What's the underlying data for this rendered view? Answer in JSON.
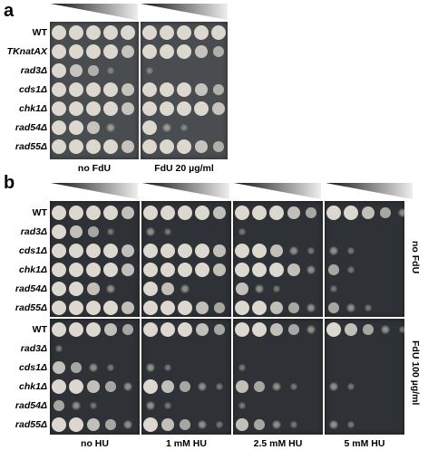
{
  "panel_a": {
    "label": "a",
    "strains": [
      "WT",
      "TKnatAX",
      "rad3Δ",
      "cds1Δ",
      "chk1Δ",
      "rad54Δ",
      "rad55Δ"
    ],
    "conditions": [
      "no FdU",
      "FdU 20 µg/ml"
    ],
    "growth": [
      [
        [
          5,
          5,
          5,
          5,
          5
        ],
        [
          5,
          5,
          5,
          5,
          5
        ]
      ],
      [
        [
          5,
          5,
          5,
          5,
          4
        ],
        [
          5,
          5,
          5,
          4,
          3
        ]
      ],
      [
        [
          5,
          4,
          3,
          1,
          0
        ],
        [
          1,
          0,
          0,
          0,
          0
        ]
      ],
      [
        [
          5,
          5,
          5,
          5,
          4
        ],
        [
          5,
          5,
          5,
          4,
          3
        ]
      ],
      [
        [
          5,
          5,
          5,
          5,
          4
        ],
        [
          5,
          5,
          5,
          5,
          4
        ]
      ],
      [
        [
          5,
          5,
          4,
          2,
          0
        ],
        [
          5,
          2,
          1,
          0,
          0
        ]
      ],
      [
        [
          5,
          5,
          5,
          5,
          4
        ],
        [
          5,
          5,
          5,
          4,
          3
        ]
      ]
    ]
  },
  "panel_b": {
    "label": "b",
    "strains": [
      "WT",
      "rad3Δ",
      "cds1Δ",
      "chk1Δ",
      "rad54Δ",
      "rad55Δ"
    ],
    "conditions": [
      "no HU",
      "1 mM HU",
      "2.5 mM HU",
      "5 mM HU"
    ],
    "row_groups": [
      "no FdU",
      "FdU 100 µg/ml"
    ],
    "growth_no_fdu": [
      [
        [
          5,
          5,
          5,
          5,
          4
        ],
        [
          5,
          5,
          5,
          5,
          4
        ],
        [
          5,
          5,
          5,
          4,
          3
        ],
        [
          5,
          5,
          4,
          3,
          2
        ]
      ],
      [
        [
          5,
          4,
          3,
          1,
          0
        ],
        [
          2,
          1,
          0,
          0,
          0
        ],
        [
          1,
          0,
          0,
          0,
          0
        ],
        [
          0,
          0,
          0,
          0,
          0
        ]
      ],
      [
        [
          5,
          5,
          5,
          5,
          4
        ],
        [
          5,
          5,
          5,
          5,
          4
        ],
        [
          5,
          5,
          4,
          2,
          1
        ],
        [
          2,
          1,
          0,
          0,
          0
        ]
      ],
      [
        [
          5,
          5,
          5,
          5,
          4
        ],
        [
          5,
          5,
          5,
          5,
          4
        ],
        [
          5,
          5,
          5,
          4,
          2
        ],
        [
          3,
          1,
          0,
          0,
          0
        ]
      ],
      [
        [
          5,
          5,
          4,
          2,
          0
        ],
        [
          5,
          4,
          2,
          0,
          0
        ],
        [
          4,
          2,
          1,
          0,
          0
        ],
        [
          1,
          0,
          0,
          0,
          0
        ]
      ],
      [
        [
          5,
          5,
          5,
          5,
          4
        ],
        [
          5,
          5,
          5,
          4,
          3
        ],
        [
          5,
          5,
          4,
          3,
          2
        ],
        [
          3,
          2,
          1,
          0,
          0
        ]
      ]
    ],
    "growth_fdu": [
      [
        [
          5,
          5,
          5,
          4,
          3
        ],
        [
          5,
          5,
          5,
          4,
          3
        ],
        [
          5,
          5,
          4,
          3,
          2
        ],
        [
          5,
          4,
          3,
          2,
          1
        ]
      ],
      [
        [
          1,
          0,
          0,
          0,
          0
        ],
        [
          0,
          0,
          0,
          0,
          0
        ],
        [
          0,
          0,
          0,
          0,
          0
        ],
        [
          0,
          0,
          0,
          0,
          0
        ]
      ],
      [
        [
          4,
          3,
          2,
          1,
          0
        ],
        [
          2,
          1,
          0,
          0,
          0
        ],
        [
          1,
          0,
          0,
          0,
          0
        ],
        [
          0,
          0,
          0,
          0,
          0
        ]
      ],
      [
        [
          5,
          5,
          4,
          3,
          2
        ],
        [
          5,
          4,
          3,
          2,
          1
        ],
        [
          4,
          3,
          2,
          1,
          0
        ],
        [
          2,
          1,
          0,
          0,
          0
        ]
      ],
      [
        [
          3,
          2,
          1,
          0,
          0
        ],
        [
          2,
          1,
          0,
          0,
          0
        ],
        [
          1,
          0,
          0,
          0,
          0
        ],
        [
          0,
          0,
          0,
          0,
          0
        ]
      ],
      [
        [
          5,
          5,
          4,
          3,
          2
        ],
        [
          5,
          4,
          3,
          2,
          1
        ],
        [
          4,
          3,
          2,
          1,
          0
        ],
        [
          2,
          1,
          0,
          0,
          0
        ]
      ]
    ]
  },
  "colors": {
    "plate": "#4a4d50",
    "plate_dark": "#2e3236",
    "colony": "#d9d6cf",
    "label_bg": "#ffffff"
  }
}
